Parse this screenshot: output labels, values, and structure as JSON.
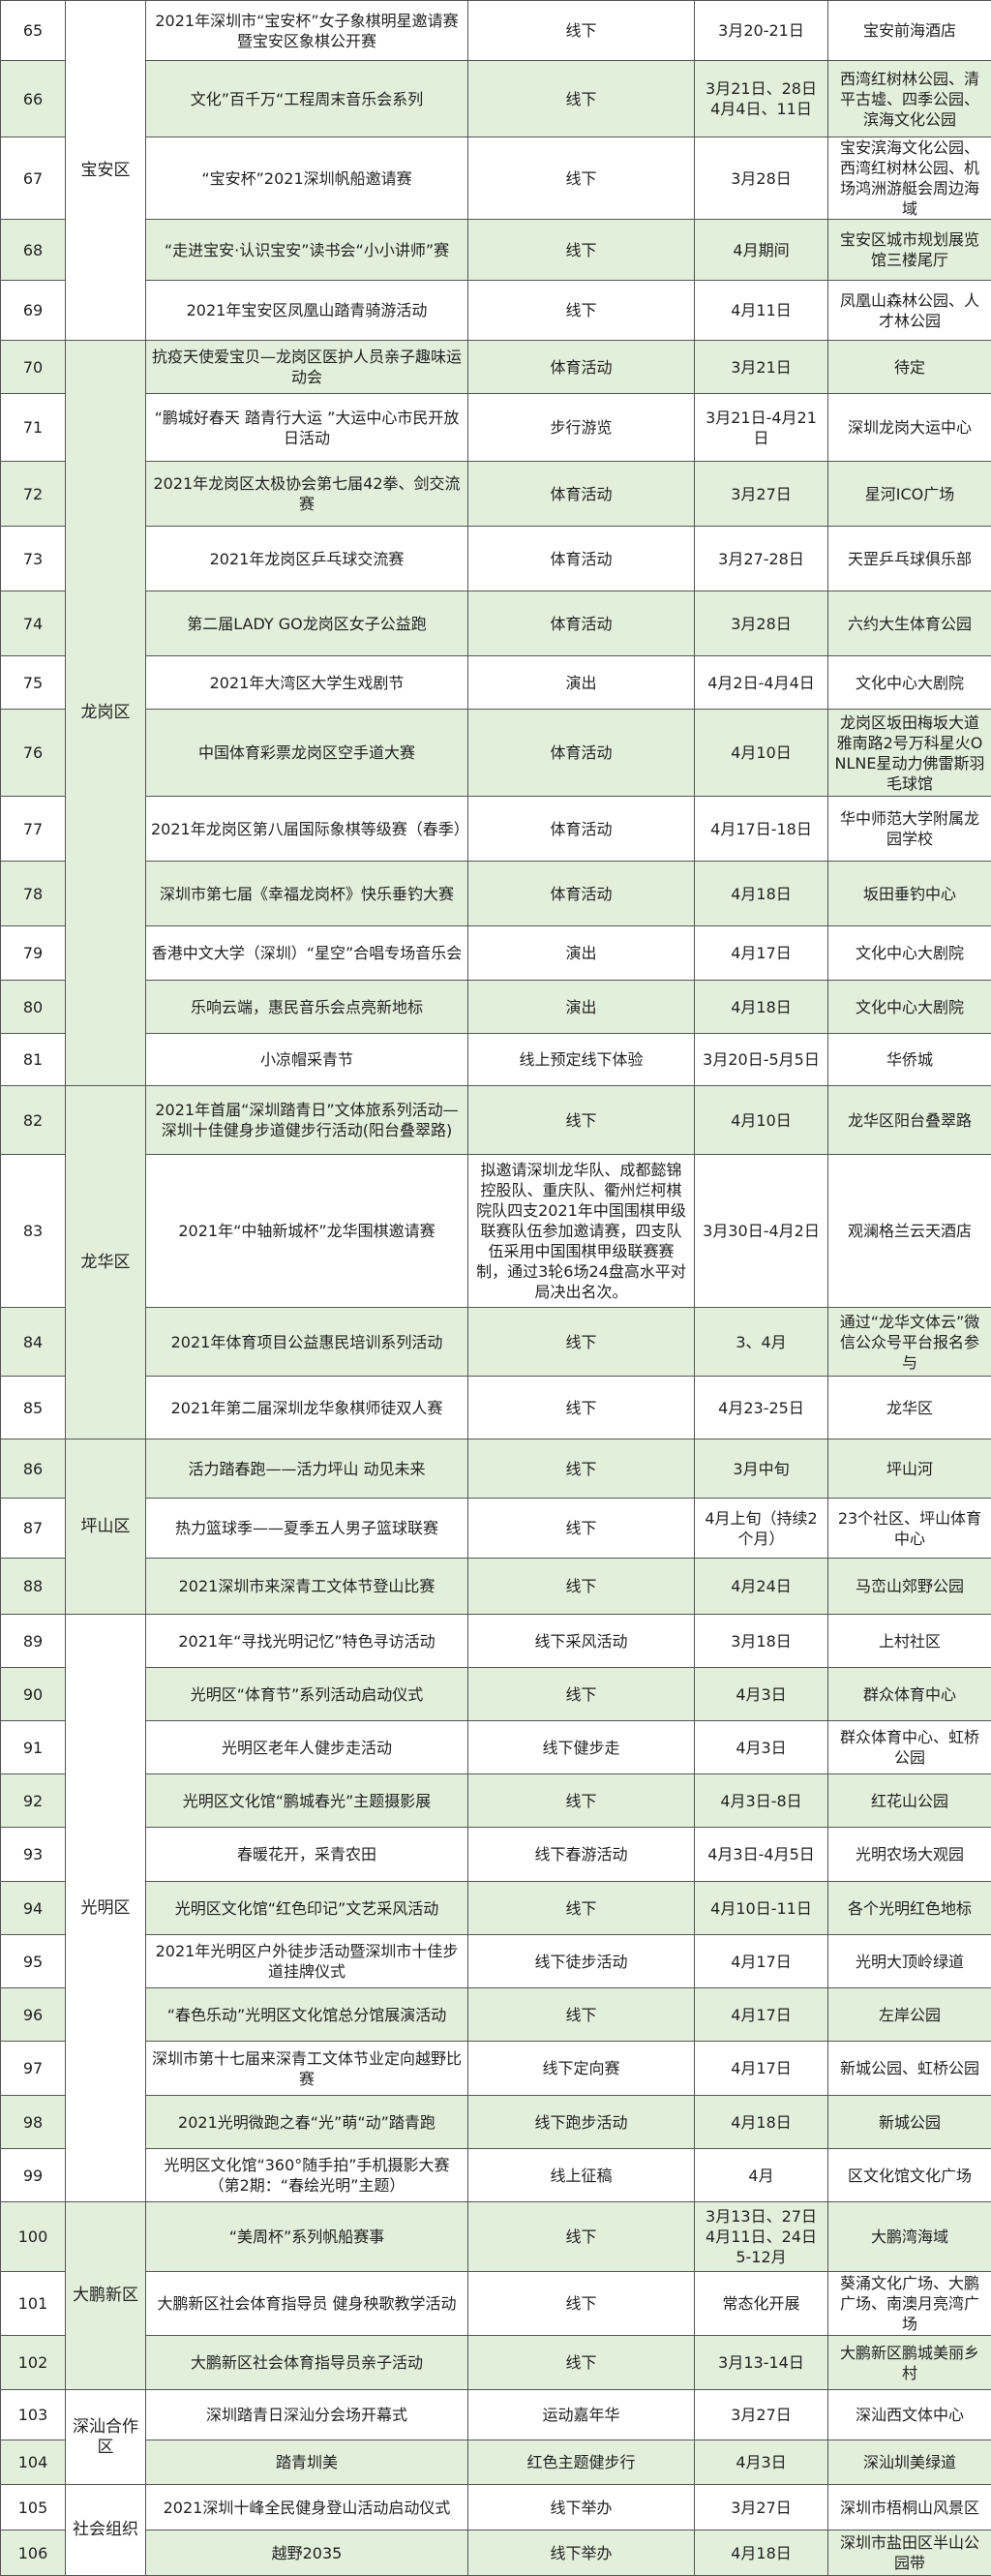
{
  "colors": {
    "row_alt": "#e2efda",
    "border": "#555555"
  },
  "regions": [
    {
      "name": "宝安区",
      "fill": "white",
      "rows": [
        {
          "no": "65",
          "name": "2021年深圳市“宝安杯”女子象棋明星邀请赛暨宝安区象棋公开赛",
          "form": "线下",
          "date": "3月20-21日",
          "place": "宝安前海酒店"
        },
        {
          "no": "66",
          "name": "文化”百千万“工程周末音乐会系列",
          "form": "线下",
          "date": "3月21日、28日 4月4日、11日",
          "place": "西湾红树林公园、清平古墟、四季公园、滨海文化公园"
        },
        {
          "no": "67",
          "name": "“宝安杯”2021深圳帆船邀请赛",
          "form": "线下",
          "date": "3月28日",
          "place": "宝安滨海文化公园、西湾红树林公园、机场鸿洲游艇会周边海域"
        },
        {
          "no": "68",
          "name": "“走进宝安·认识宝安”读书会“小小讲师”赛",
          "form": "线下",
          "date": "4月期间",
          "place": "宝安区城市规划展览馆三楼尾厅"
        },
        {
          "no": "69",
          "name": "2021年宝安区凤凰山踏青骑游活动",
          "form": "线下",
          "date": "4月11日",
          "place": "凤凰山森林公园、人才林公园"
        }
      ]
    },
    {
      "name": "龙岗区",
      "fill": "green",
      "rows": [
        {
          "no": "70",
          "name": "抗疫天使爱宝贝—龙岗区医护人员亲子趣味运动会",
          "form": "体育活动",
          "date": "3月21日",
          "place": "待定"
        },
        {
          "no": "71",
          "name": "“鹏城好春天 踏青行大运 ”大运中心市民开放日活动",
          "form": "步行游览",
          "date": "3月21日-4月21日",
          "place": "深圳龙岗大运中心"
        },
        {
          "no": "72",
          "name": "2021年龙岗区太极协会第七届42拳、剑交流赛",
          "form": "体育活动",
          "date": "3月27日",
          "place": "星河ICO广场"
        },
        {
          "no": "73",
          "name": "2021年龙岗区乒乓球交流赛",
          "form": "体育活动",
          "date": "3月27-28日",
          "place": "天罡乒乓球俱乐部"
        },
        {
          "no": "74",
          "name": "第二届LADY GO龙岗区女子公益跑",
          "form": "体育活动",
          "date": "3月28日",
          "place": "六约大生体育公园"
        },
        {
          "no": "75",
          "name": "2021年大湾区大学生戏剧节",
          "form": "演出",
          "date": "4月2日-4月4日",
          "place": "文化中心大剧院"
        },
        {
          "no": "76",
          "name": "中国体育彩票龙岗区空手道大赛",
          "form": "体育活动",
          "date": "4月10日",
          "place": "龙岗区坂田梅坂大道雅南路2号万科星火ONLNE星动力佛雷斯羽毛球馆"
        },
        {
          "no": "77",
          "name": "2021年龙岗区第八届国际象棋等级赛（春季）",
          "form": "体育活动",
          "date": "4月17日-18日",
          "place": "华中师范大学附属龙园学校"
        },
        {
          "no": "78",
          "name": "深圳市第七届《幸福龙岗杯》快乐垂钓大赛",
          "form": "体育活动",
          "date": "4月18日",
          "place": "坂田垂钓中心"
        },
        {
          "no": "79",
          "name": "香港中文大学（深圳）“星空”合唱专场音乐会",
          "form": "演出",
          "date": "4月17日",
          "place": "文化中心大剧院"
        },
        {
          "no": "80",
          "name": "乐响云端，惠民音乐会点亮新地标",
          "form": "演出",
          "date": "4月18日",
          "place": "文化中心大剧院"
        },
        {
          "no": "81",
          "name": "小凉帽采青节",
          "form": "线上预定线下体验",
          "date": "3月20日-5月5日",
          "place": "华侨城"
        }
      ]
    },
    {
      "name": "龙华区",
      "fill": "green",
      "rows": [
        {
          "no": "82",
          "name": "2021年首届“深圳踏青日”文体旅系列活动—深圳十佳健身步道健步行活动(阳台叠翠路)",
          "form": "线下",
          "date": "4月10日",
          "place": "龙华区阳台叠翠路"
        },
        {
          "no": "83",
          "name": "2021年“中轴新城杯”龙华围棋邀请赛",
          "form": "拟邀请深圳龙华队、成都懿锦控股队、重庆队、衢州烂柯棋院队四支2021年中国围棋甲级联赛队伍参加邀请赛，四支队伍采用中国围棋甲级联赛赛制，通过3轮6场24盘高水平对局决出名次。",
          "date": "3月30日-4月2日",
          "place": "观澜格兰云天酒店"
        },
        {
          "no": "84",
          "name": "2021年体育项目公益惠民培训系列活动",
          "form": "线下",
          "date": "3、4月",
          "place": "通过“龙华文体云”微信公众号平台报名参与"
        },
        {
          "no": "85",
          "name": "2021年第二届深圳龙华象棋师徒双人赛",
          "form": "线下",
          "date": "4月23-25日",
          "place": "龙华区"
        }
      ]
    },
    {
      "name": "坪山区",
      "fill": "green",
      "rows": [
        {
          "no": "86",
          "name": "活力踏春跑——活力坪山 动见未来",
          "form": "线下",
          "date": "3月中旬",
          "place": "坪山河"
        },
        {
          "no": "87",
          "name": "热力篮球季——夏季五人男子篮球联赛",
          "form": "线下",
          "date": "4月上旬（持续2个月）",
          "place": "23个社区、坪山体育中心"
        },
        {
          "no": "88",
          "name": "2021深圳市来深青工文体节登山比赛",
          "form": "线下",
          "date": "4月24日",
          "place": "马峦山郊野公园"
        }
      ]
    },
    {
      "name": "光明区",
      "fill": "white",
      "rows": [
        {
          "no": "89",
          "name": "2021年“寻找光明记忆”特色寻访活动",
          "form": "线下采风活动",
          "date": "3月18日",
          "place": "上村社区"
        },
        {
          "no": "90",
          "name": "光明区“体育节”系列活动启动仪式",
          "form": "线下",
          "date": "4月3日",
          "place": "群众体育中心"
        },
        {
          "no": "91",
          "name": "光明区老年人健步走活动",
          "form": "线下健步走",
          "date": "4月3日",
          "place": "群众体育中心、虹桥公园"
        },
        {
          "no": "92",
          "name": "光明区文化馆“鹏城春光”主题摄影展",
          "form": "线下",
          "date": "4月3日-8日",
          "place": "红花山公园"
        },
        {
          "no": "93",
          "name": "春暖花开，采青农田",
          "form": "线下春游活动",
          "date": "4月3日-4月5日",
          "place": "光明农场大观园"
        },
        {
          "no": "94",
          "name": "光明区文化馆“红色印记”文艺采风活动",
          "form": "线下",
          "date": "4月10日-11日",
          "place": "各个光明红色地标"
        },
        {
          "no": "95",
          "name": "2021年光明区户外徒步活动暨深圳市十佳步道挂牌仪式",
          "form": "线下徒步活动",
          "date": "4月17日",
          "place": "光明大顶岭绿道"
        },
        {
          "no": "96",
          "name": "“春色乐动”光明区文化馆总分馆展演活动",
          "form": "线下",
          "date": "4月17日",
          "place": "左岸公园"
        },
        {
          "no": "97",
          "name": "深圳市第十七届来深青工文体节业定向越野比赛",
          "form": "线下定向赛",
          "date": "4月17日",
          "place": "新城公园、虹桥公园"
        },
        {
          "no": "98",
          "name": "2021光明微跑之春“光”萌“动”踏青跑",
          "form": "线下跑步活动",
          "date": "4月18日",
          "place": "新城公园"
        },
        {
          "no": "99",
          "name": "光明区文化馆“360°随手拍”手机摄影大赛（第2期：“春绘光明”主题）",
          "form": "线上征稿",
          "date": "4月",
          "place": "区文化馆文化广场"
        }
      ]
    },
    {
      "name": "大鹏新区",
      "fill": "green",
      "rows": [
        {
          "no": "100",
          "name": "“美周杯”系列帆船赛事",
          "form": "线下",
          "date": "3月13日、27日 4月11日、24日 5-12月",
          "place": "大鹏湾海域"
        },
        {
          "no": "101",
          "name": "大鹏新区社会体育指导员 健身秧歌教学活动",
          "form": "线下",
          "date": "常态化开展",
          "place": "葵涌文化广场、大鹏广场、南澳月亮湾广场"
        },
        {
          "no": "102",
          "name": "大鹏新区社会体育指导员亲子活动",
          "form": "线下",
          "date": "3月13-14日",
          "place": "大鹏新区鹏城美丽乡村"
        }
      ]
    },
    {
      "name": "深汕合作区",
      "fill": "white",
      "rows": [
        {
          "no": "103",
          "name": "深圳踏青日深汕分会场开幕式",
          "form": "运动嘉年华",
          "date": "3月27日",
          "place": "深汕西文体中心"
        },
        {
          "no": "104",
          "name": "踏青圳美",
          "form": "红色主题健步行",
          "date": "4月3日",
          "place": "深汕圳美绿道"
        }
      ]
    },
    {
      "name": "社会组织",
      "fill": "white",
      "rows": [
        {
          "no": "105",
          "name": "2021深圳十峰全民健身登山活动启动仪式",
          "form": "线下举办",
          "date": "3月27日",
          "place": "深圳市梧桐山风景区"
        },
        {
          "no": "106",
          "name": "越野2035",
          "form": "线下举办",
          "date": "4月18日",
          "place": "深圳市盐田区半山公园带"
        }
      ]
    }
  ]
}
